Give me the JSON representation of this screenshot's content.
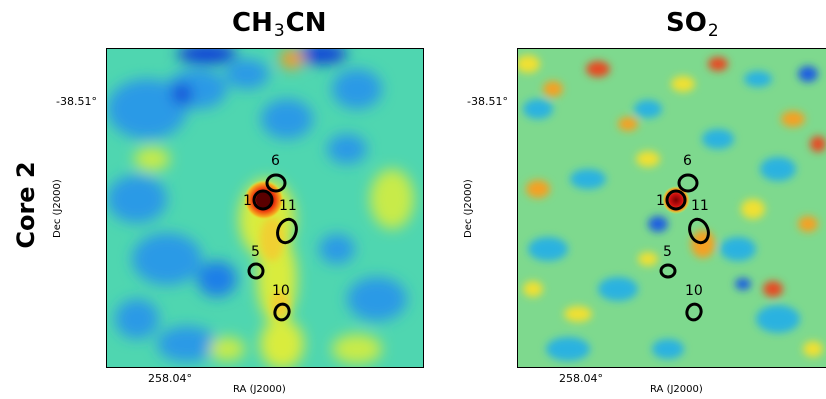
{
  "row_label": "Core 2",
  "panels": [
    {
      "title_main": "CH",
      "title_sub": "3",
      "title_tail": "CN",
      "ytick": "-38.51°",
      "xtick": "258.04°",
      "xlabel": "RA (J2000)",
      "ylabel": "Dec (J2000)"
    },
    {
      "title_main": "SO",
      "title_sub": "2",
      "title_tail": "",
      "ytick": "-38.51°",
      "xtick": "258.04°",
      "xlabel": "RA (J2000)",
      "ylabel": "Dec (J2000)"
    }
  ],
  "sources": [
    "6",
    "1",
    "11",
    "5",
    "10"
  ],
  "colors": {
    "background_field": "#46d7b4",
    "blue_patch": "#1f8be8",
    "deep_blue": "#0a3dd6",
    "yellow_patch": "#e7ef3a",
    "orange_patch": "#f59b20",
    "red_peak": "#8a0000",
    "contour": "#000000"
  }
}
